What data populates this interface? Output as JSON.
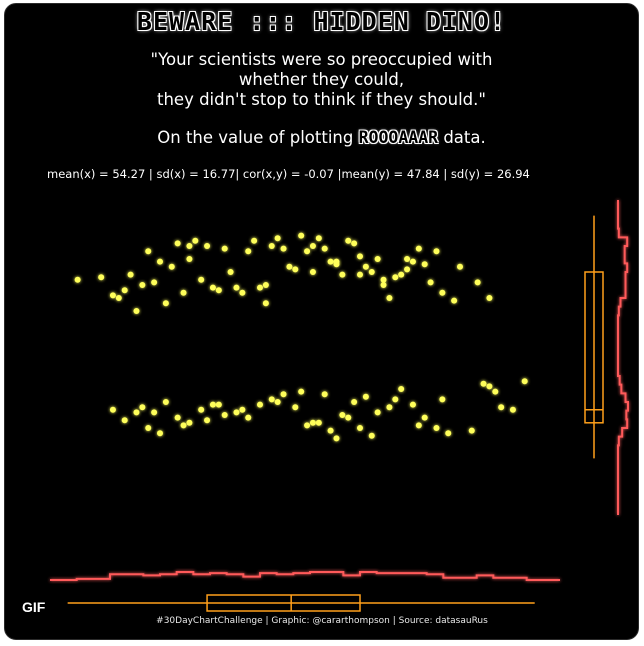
{
  "title": "BEWARE ::: HIDDEN DINO!",
  "quote": {
    "line1": "\"Your scientists were so preoccupied with",
    "line2": "whether they could,",
    "line3": "they didn't stop to think if they should.\""
  },
  "subtitle": {
    "before": "On the value of plotting ",
    "emphasis": "ROOOAAAR",
    "after": " data."
  },
  "stats": "mean(x) = 54.27 | sd(x) = 16.77| cor(x,y) = -0.07 |mean(y) = 47.84 | sd(y) = 26.94",
  "caption": "#30DayChartChallenge | Graphic: @cararthompson | Source: datasauRus",
  "badge": "GIF",
  "colors": {
    "background": "#000000",
    "points": "#ffff5a",
    "marginal_x": "#ff5a5a",
    "marginal_y": "#ff5a5a",
    "boxplot": "#ff9f1a"
  },
  "chart_data": {
    "type": "scatter",
    "xlim": [
      15,
      100
    ],
    "ylim": [
      0,
      100
    ],
    "series": [
      {
        "x": [
          18,
          24,
          26,
          27,
          29,
          30,
          32,
          35,
          36,
          37,
          38,
          40,
          41,
          42,
          43,
          44,
          46,
          47,
          48,
          49,
          50,
          51,
          52,
          53,
          55,
          56,
          57,
          58,
          59,
          60,
          61,
          62,
          63,
          64,
          65,
          66,
          67,
          68,
          69,
          70,
          71,
          72,
          73,
          74,
          75,
          76,
          77,
          78,
          80,
          82,
          22,
          25,
          28,
          31,
          33,
          34,
          37,
          39,
          45,
          50,
          54,
          58,
          62,
          66,
          70,
          74,
          79,
          83,
          86,
          88,
          24,
          26,
          29,
          31,
          33,
          35,
          37,
          39,
          41,
          43,
          45,
          47,
          49,
          51,
          53,
          55,
          57,
          59,
          61,
          63,
          65,
          67,
          69,
          71,
          73,
          75,
          77,
          79,
          81,
          85,
          87,
          88,
          89,
          90,
          92,
          94,
          80,
          60,
          40,
          30,
          28,
          32,
          36,
          42,
          46,
          52,
          56,
          58,
          62,
          64,
          66,
          68,
          72,
          76
        ],
        "y": [
          77,
          71,
          73,
          79,
          75,
          88,
          84,
          91,
          72,
          85,
          92,
          90,
          74,
          73,
          89,
          80,
          72,
          88,
          92,
          74,
          75,
          90,
          93,
          89,
          81,
          94,
          88,
          90,
          93,
          89,
          84,
          83,
          79,
          92,
          91,
          86,
          82,
          80,
          85,
          75,
          70,
          78,
          79,
          85,
          84,
          89,
          83,
          76,
          72,
          69,
          78,
          70,
          65,
          76,
          68,
          82,
          90,
          77,
          74,
          68,
          82,
          80,
          84,
          79,
          77,
          81,
          88,
          82,
          76,
          70,
          27,
          23,
          28,
          26,
          30,
          24,
          22,
          27,
          29,
          25,
          26,
          24,
          29,
          31,
          33,
          28,
          21,
          22,
          19,
          25,
          30,
          32,
          26,
          28,
          35,
          29,
          24,
          20,
          18,
          19,
          37,
          36,
          34,
          28,
          27,
          38,
          31,
          33,
          23,
          20,
          26,
          18,
          21,
          29,
          27,
          30,
          34,
          22,
          16,
          24,
          20,
          17,
          31,
          21
        ]
      }
    ],
    "marginal_x": {
      "type": "histogram_and_boxplot",
      "median": 54.3,
      "q1": 40,
      "q3": 66,
      "min": 18,
      "max": 94
    },
    "marginal_y": {
      "type": "histogram_and_boxplot",
      "median": 27,
      "q1": 22,
      "q3": 80,
      "min": 16,
      "max": 94
    }
  }
}
